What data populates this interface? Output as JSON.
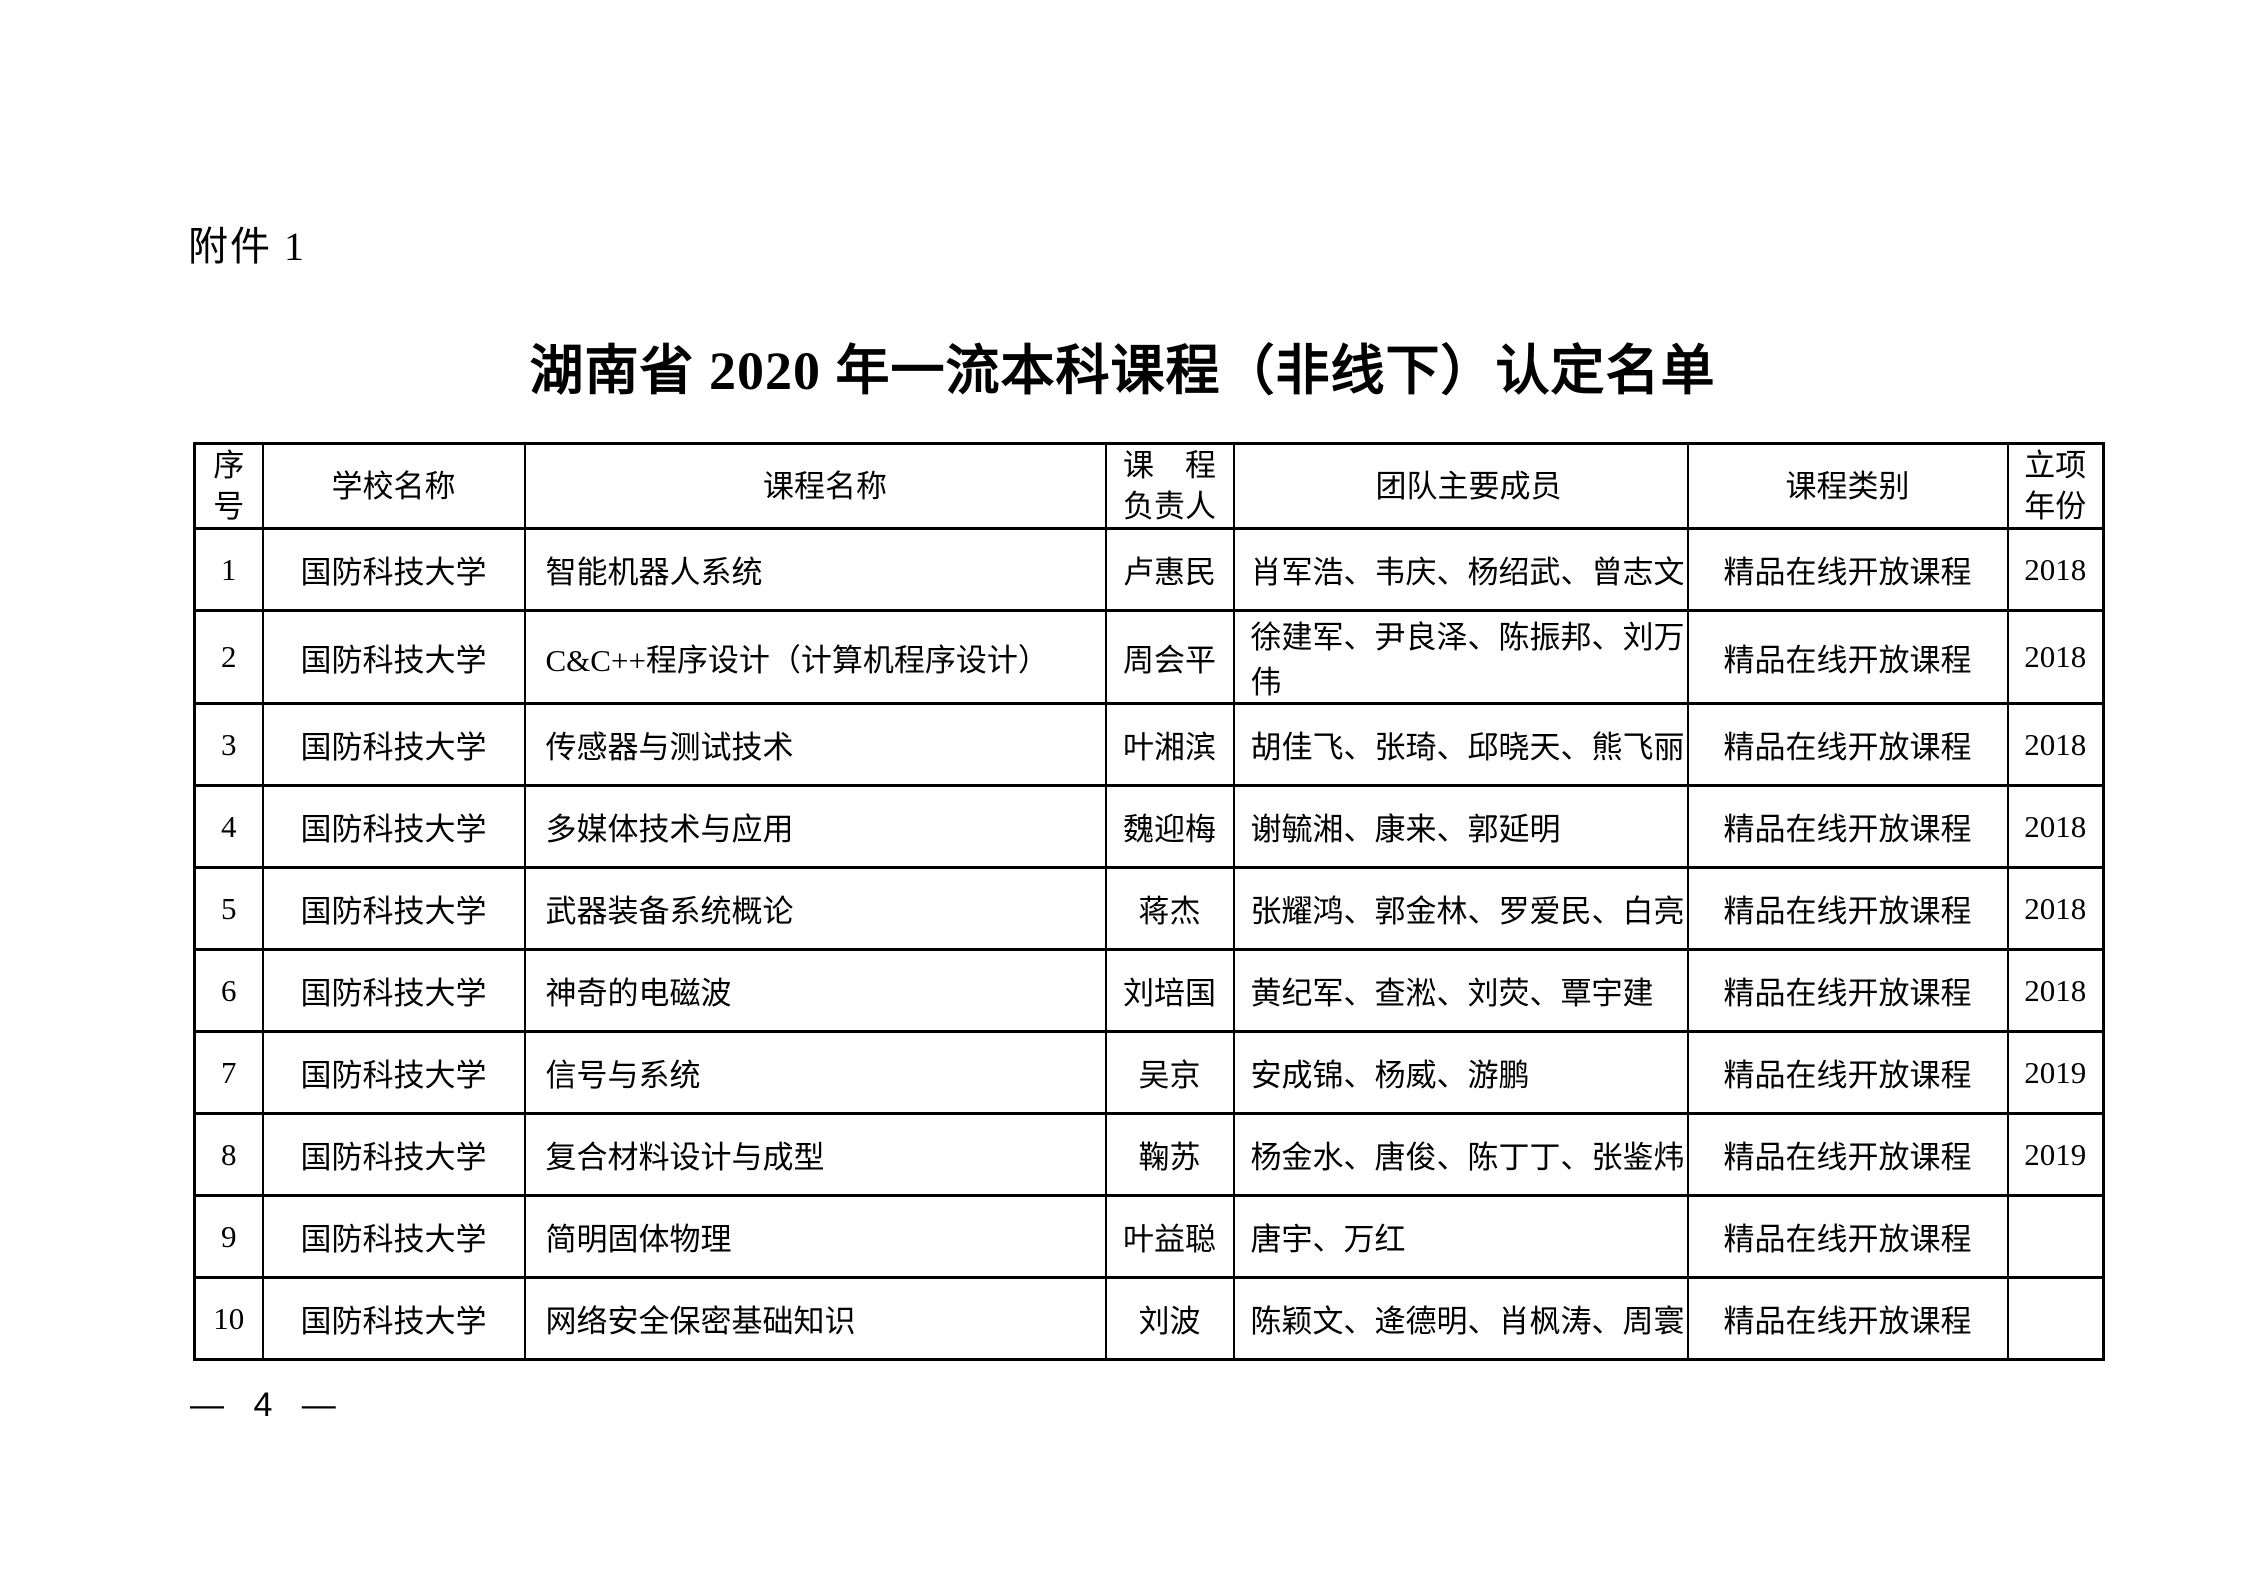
{
  "page": {
    "attachment_label": "附件 1",
    "title": "湖南省 2020 年一流本科课程（非线下）认定名单",
    "page_number": "— 4 —"
  },
  "table": {
    "columns": [
      {
        "key": "no",
        "label": "序\n号"
      },
      {
        "key": "school",
        "label": "学校名称"
      },
      {
        "key": "course",
        "label": "课程名称"
      },
      {
        "key": "leader",
        "label": "课　程\n负责人"
      },
      {
        "key": "members",
        "label": "团队主要成员"
      },
      {
        "key": "category",
        "label": "课程类别"
      },
      {
        "key": "year",
        "label": "立项\n年份"
      }
    ],
    "rows": [
      {
        "no": "1",
        "school": "国防科技大学",
        "course": "智能机器人系统",
        "leader": "卢惠民",
        "members": "肖军浩、韦庆、杨绍武、曾志文",
        "category": "精品在线开放课程",
        "year": "2018"
      },
      {
        "no": "2",
        "school": "国防科技大学",
        "course": "C&C++程序设计（计算机程序设计）",
        "leader": "周会平",
        "members": "徐建军、尹良泽、陈振邦、刘万伟",
        "category": "精品在线开放课程",
        "year": "2018"
      },
      {
        "no": "3",
        "school": "国防科技大学",
        "course": "传感器与测试技术",
        "leader": "叶湘滨",
        "members": "胡佳飞、张琦、邱晓天、熊飞丽",
        "category": "精品在线开放课程",
        "year": "2018"
      },
      {
        "no": "4",
        "school": "国防科技大学",
        "course": "多媒体技术与应用",
        "leader": "魏迎梅",
        "members": "谢毓湘、康来、郭延明",
        "category": "精品在线开放课程",
        "year": "2018"
      },
      {
        "no": "5",
        "school": "国防科技大学",
        "course": "武器装备系统概论",
        "leader": "蒋杰",
        "members": "张耀鸿、郭金林、罗爱民、白亮",
        "category": "精品在线开放课程",
        "year": "2018"
      },
      {
        "no": "6",
        "school": "国防科技大学",
        "course": "神奇的电磁波",
        "leader": "刘培国",
        "members": "黄纪军、查淞、刘荧、覃宇建",
        "category": "精品在线开放课程",
        "year": "2018"
      },
      {
        "no": "7",
        "school": "国防科技大学",
        "course": "信号与系统",
        "leader": "吴京",
        "members": "安成锦、杨威、游鹏",
        "category": "精品在线开放课程",
        "year": "2019"
      },
      {
        "no": "8",
        "school": "国防科技大学",
        "course": "复合材料设计与成型",
        "leader": "鞠苏",
        "members": "杨金水、唐俊、陈丁丁、张鉴炜",
        "category": "精品在线开放课程",
        "year": "2019"
      },
      {
        "no": "9",
        "school": "国防科技大学",
        "course": "简明固体物理",
        "leader": "叶益聪",
        "members": "唐宇、万红",
        "category": "精品在线开放课程",
        "year": ""
      },
      {
        "no": "10",
        "school": "国防科技大学",
        "course": "网络安全保密基础知识",
        "leader": "刘波",
        "members": "陈颖文、逄德明、肖枫涛、周寰",
        "category": "精品在线开放课程",
        "year": ""
      }
    ]
  }
}
